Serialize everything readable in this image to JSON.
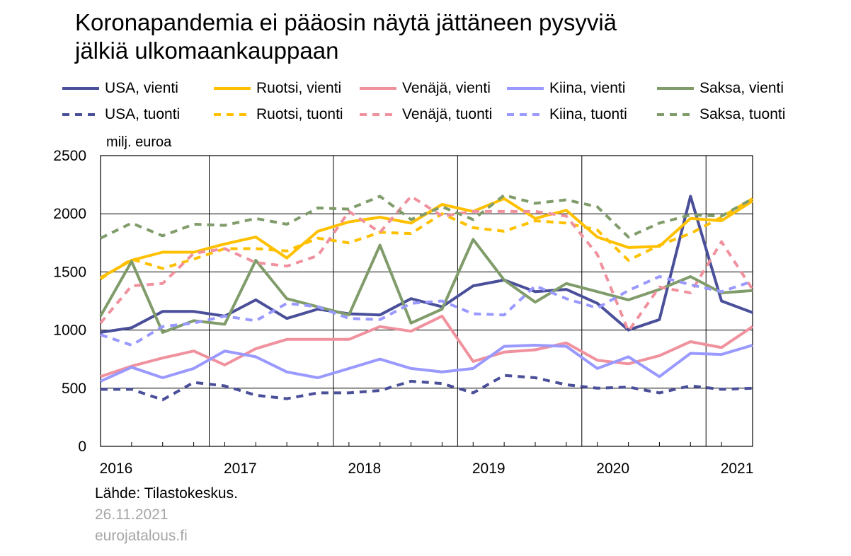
{
  "chart_data": {
    "type": "line",
    "title_lines": [
      "Koronapandemia ei pääosin näytä jättäneen pysyviä",
      "jälkiä ulkomaankauppaan"
    ],
    "ylabel": "milj. euroa",
    "ylim": [
      0,
      2500
    ],
    "yticks": [
      0,
      500,
      1000,
      1500,
      2000,
      2500
    ],
    "year_labels": [
      "2016",
      "2017",
      "2018",
      "2019",
      "2020",
      "2021"
    ],
    "quarters": [
      "2016Q1",
      "2016Q2",
      "2016Q3",
      "2016Q4",
      "2017Q1",
      "2017Q2",
      "2017Q3",
      "2017Q4",
      "2018Q1",
      "2018Q2",
      "2018Q3",
      "2018Q4",
      "2019Q1",
      "2019Q2",
      "2019Q3",
      "2019Q4",
      "2020Q1",
      "2020Q2",
      "2020Q3",
      "2020Q4",
      "2021Q1",
      "2021Q2"
    ],
    "grid": true,
    "legend_position": "top",
    "series": [
      {
        "name": "USA, vienti",
        "color": "#4a4f9a",
        "dash": false,
        "values": [
          980,
          1020,
          1160,
          1160,
          1120,
          1260,
          1100,
          1180,
          1140,
          1130,
          1270,
          1200,
          1380,
          1430,
          1330,
          1350,
          1230,
          1000,
          1090,
          2150,
          1250,
          1150
        ]
      },
      {
        "name": "Ruotsi, vienti",
        "color": "#ffc000",
        "dash": false,
        "values": [
          1450,
          1600,
          1670,
          1670,
          1740,
          1800,
          1620,
          1850,
          1930,
          1970,
          1920,
          2080,
          2020,
          2130,
          1960,
          2030,
          1800,
          1710,
          1720,
          1960,
          1940,
          2110
        ]
      },
      {
        "name": "Venäjä, vienti",
        "color": "#f0919e",
        "dash": false,
        "values": [
          600,
          690,
          760,
          820,
          700,
          840,
          920,
          920,
          920,
          1030,
          990,
          1120,
          730,
          810,
          830,
          890,
          740,
          710,
          780,
          900,
          850,
          1030
        ]
      },
      {
        "name": "Kiina, vienti",
        "color": "#9999ff",
        "dash": false,
        "values": [
          560,
          680,
          590,
          670,
          820,
          770,
          640,
          590,
          670,
          750,
          670,
          640,
          670,
          860,
          870,
          860,
          670,
          770,
          600,
          800,
          790,
          870
        ]
      },
      {
        "name": "Saksa, vienti",
        "color": "#809c6a",
        "dash": false,
        "values": [
          1120,
          1590,
          980,
          1080,
          1050,
          1600,
          1270,
          1200,
          1130,
          1730,
          1060,
          1180,
          1780,
          1430,
          1240,
          1400,
          1330,
          1260,
          1350,
          1460,
          1320,
          1340
        ]
      },
      {
        "name": "USA, tuonti",
        "color": "#4a4f9a",
        "dash": true,
        "values": [
          490,
          490,
          400,
          550,
          520,
          440,
          410,
          460,
          460,
          480,
          560,
          540,
          460,
          610,
          590,
          530,
          500,
          510,
          460,
          520,
          490,
          500
        ]
      },
      {
        "name": "Ruotsi, tuonti",
        "color": "#ffc000",
        "dash": true,
        "values": [
          1440,
          1610,
          1530,
          1610,
          1700,
          1700,
          1680,
          1790,
          1750,
          1840,
          1830,
          2000,
          1880,
          1850,
          1940,
          1920,
          1860,
          1600,
          1730,
          1830,
          1970,
          2130
        ]
      },
      {
        "name": "Venäjä, tuonti",
        "color": "#f0919e",
        "dash": true,
        "values": [
          1060,
          1380,
          1400,
          1660,
          1700,
          1580,
          1550,
          1640,
          2020,
          1840,
          2150,
          1980,
          2020,
          2020,
          2020,
          1980,
          1650,
          990,
          1370,
          1320,
          1760,
          1350
        ]
      },
      {
        "name": "Kiina, tuonti",
        "color": "#9999ff",
        "dash": true,
        "values": [
          960,
          870,
          1030,
          1060,
          1120,
          1080,
          1230,
          1200,
          1100,
          1090,
          1230,
          1250,
          1140,
          1130,
          1380,
          1270,
          1190,
          1340,
          1460,
          1390,
          1330,
          1420
        ]
      },
      {
        "name": "Saksa, tuonti",
        "color": "#809c6a",
        "dash": true,
        "values": [
          1790,
          1920,
          1810,
          1910,
          1900,
          1960,
          1910,
          2050,
          2040,
          2150,
          1950,
          2060,
          1950,
          2160,
          2090,
          2120,
          2060,
          1800,
          1920,
          1990,
          1980,
          2130
        ]
      }
    ]
  },
  "footer": {
    "source": "Lähde: Tilastokeskus.",
    "date": "26.11.2021",
    "site": "eurojatalous.fi"
  }
}
